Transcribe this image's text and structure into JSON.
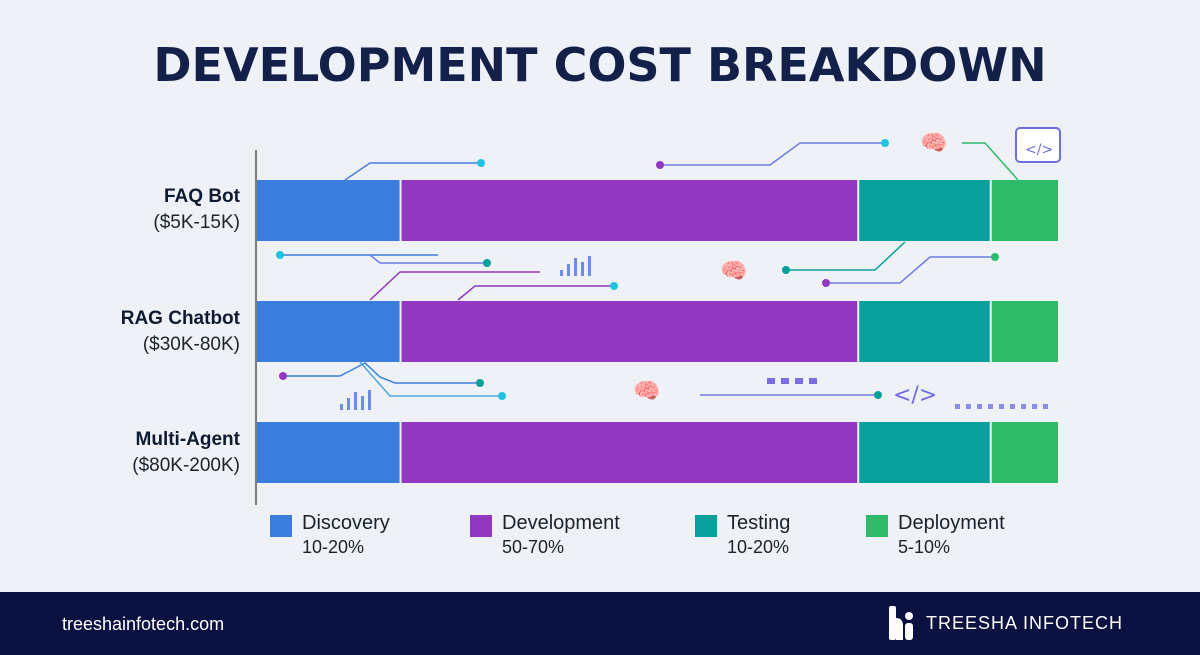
{
  "chart_data": {
    "type": "bar",
    "orientation": "horizontal-stacked-percent",
    "title": "DEVELOPMENT COST BREAKDOWN",
    "categories": [
      {
        "name": "FAQ Bot",
        "range": "($5K-15K)"
      },
      {
        "name": "RAG Chatbot",
        "range": "($30K-80K)"
      },
      {
        "name": "Multi-Agent",
        "range": "($80K-200K)"
      }
    ],
    "series": [
      {
        "name": "Discovery",
        "range": "10-20%",
        "color": "#3b7ddd",
        "values": [
          18,
          18,
          18
        ]
      },
      {
        "name": "Development",
        "range": "50-70%",
        "color": "#9238c0",
        "values": [
          57,
          57,
          57
        ]
      },
      {
        "name": "Testing",
        "range": "10-20%",
        "color": "#07a09a",
        "values": [
          16.5,
          16.5,
          16.5
        ]
      },
      {
        "name": "Deployment",
        "range": "5-10%",
        "color": "#2dbb6a",
        "values": [
          8.5,
          8.5,
          8.5
        ]
      }
    ],
    "legend": "bottom",
    "grid": false
  },
  "footer": {
    "website": "treeshainfotech.com",
    "brand": "TREESHA INFOTECH"
  }
}
